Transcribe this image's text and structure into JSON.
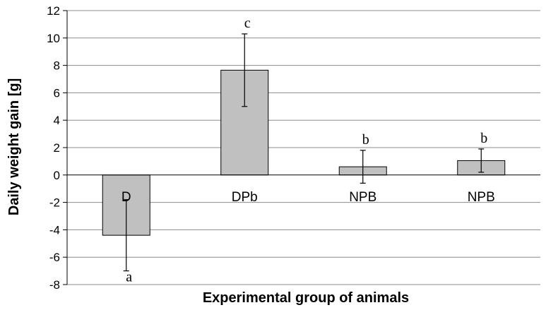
{
  "chart_data": {
    "type": "bar",
    "title": "",
    "xlabel": "Experimental group of animals",
    "ylabel": "Daily weight gain [g]",
    "ylim": [
      -8,
      12
    ],
    "ytick_step": 2,
    "grid": true,
    "categories": [
      "D",
      "DPb",
      "NPB",
      "NPB"
    ],
    "values": [
      -4.4,
      7.65,
      0.6,
      1.05
    ],
    "error_bars": [
      2.6,
      2.65,
      1.2,
      0.85
    ],
    "significance_labels": [
      "a",
      "c",
      "b",
      "b"
    ],
    "colors": {
      "bar_fill": "#c0c0c0",
      "bar_stroke": "#000000",
      "grid": "#8c8c8c",
      "axis": "#000000"
    }
  }
}
